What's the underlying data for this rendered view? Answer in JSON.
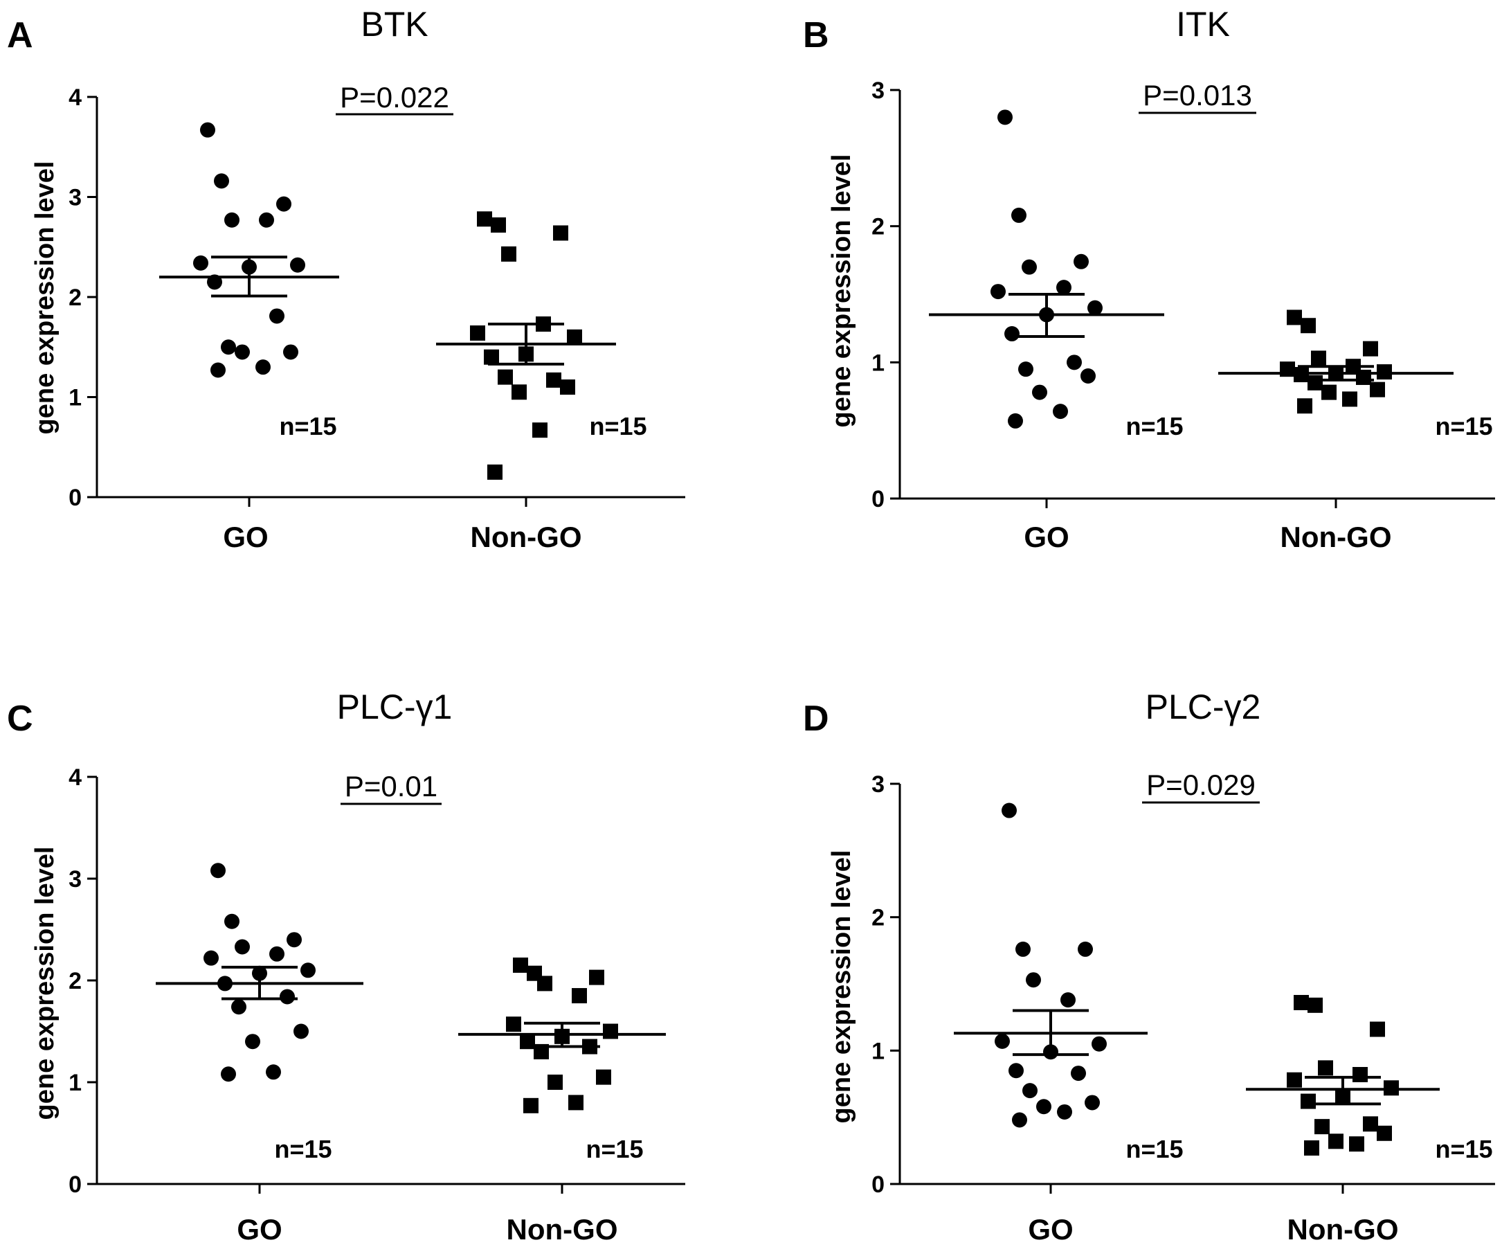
{
  "chart_data": [
    {
      "type": "scatter",
      "panel": "A",
      "title": "BTK",
      "ylabel": "gene expression level",
      "ylim": [
        0,
        4
      ],
      "yticks": [
        "0",
        "1",
        "2",
        "3",
        "4"
      ],
      "categories": [
        "GO",
        "Non-GO"
      ],
      "p_value": "P=0.022",
      "n_labels": [
        "n=15",
        "n=15"
      ],
      "groups": [
        {
          "name": "GO",
          "marker": "circle",
          "mean": 2.2,
          "sem": [
            2.01,
            2.4
          ],
          "values": [
            3.67,
            3.16,
            2.93,
            2.77,
            2.77,
            2.34,
            2.32,
            2.3,
            2.15,
            1.81,
            1.5,
            1.45,
            1.45,
            1.3,
            1.27
          ]
        },
        {
          "name": "Non-GO",
          "marker": "square",
          "mean": 1.53,
          "sem": [
            1.33,
            1.73
          ],
          "values": [
            2.78,
            2.72,
            2.64,
            2.43,
            1.73,
            1.64,
            1.6,
            1.43,
            1.4,
            1.17,
            1.2,
            1.1,
            1.05,
            0.67,
            0.25
          ]
        }
      ]
    },
    {
      "type": "scatter",
      "panel": "B",
      "title": "ITK",
      "ylabel": "gene expression level",
      "ylim": [
        0,
        3
      ],
      "yticks": [
        "0",
        "1",
        "2",
        "3"
      ],
      "categories": [
        "GO",
        "Non-GO"
      ],
      "p_value": "P=0.013",
      "n_labels": [
        "n=15",
        "n=15"
      ],
      "groups": [
        {
          "name": "GO",
          "marker": "circle",
          "mean": 1.35,
          "sem": [
            1.19,
            1.5
          ],
          "values": [
            2.8,
            2.08,
            1.74,
            1.7,
            1.55,
            1.52,
            1.4,
            1.35,
            1.21,
            1.0,
            0.95,
            0.9,
            0.78,
            0.64,
            0.57
          ]
        },
        {
          "name": "Non-GO",
          "marker": "square",
          "mean": 0.92,
          "sem": [
            0.87,
            0.97
          ],
          "values": [
            1.33,
            1.27,
            1.1,
            1.03,
            0.97,
            0.95,
            0.93,
            0.92,
            0.91,
            0.89,
            0.85,
            0.8,
            0.78,
            0.73,
            0.68
          ]
        }
      ]
    },
    {
      "type": "scatter",
      "panel": "C",
      "title": "PLC-γ1",
      "ylabel": "gene expression level",
      "ylim": [
        0,
        4
      ],
      "yticks": [
        "0",
        "1",
        "2",
        "3",
        "4"
      ],
      "categories": [
        "GO",
        "Non-GO"
      ],
      "p_value": "P=0.01",
      "n_labels": [
        "n=15",
        "n=15"
      ],
      "groups": [
        {
          "name": "GO",
          "marker": "circle",
          "mean": 1.97,
          "sem": [
            1.82,
            2.13
          ],
          "values": [
            3.08,
            2.58,
            2.4,
            2.33,
            2.26,
            2.22,
            2.1,
            2.07,
            1.97,
            1.84,
            1.74,
            1.5,
            1.4,
            1.1,
            1.08
          ]
        },
        {
          "name": "Non-GO",
          "marker": "square",
          "mean": 1.47,
          "sem": [
            1.35,
            1.58
          ],
          "values": [
            2.15,
            2.07,
            2.03,
            1.97,
            1.85,
            1.57,
            1.5,
            1.45,
            1.4,
            1.35,
            1.3,
            1.05,
            1.0,
            0.8,
            0.77
          ]
        }
      ]
    },
    {
      "type": "scatter",
      "panel": "D",
      "title": "PLC-γ2",
      "ylabel": "gene expression level",
      "ylim": [
        0,
        3
      ],
      "yticks": [
        "0",
        "1",
        "2",
        "3"
      ],
      "categories": [
        "GO",
        "Non-GO"
      ],
      "p_value": "P=0.029",
      "n_labels": [
        "n=15",
        "n=15"
      ],
      "groups": [
        {
          "name": "GO",
          "marker": "circle",
          "mean": 1.13,
          "sem": [
            0.97,
            1.3
          ],
          "values": [
            2.8,
            1.76,
            1.76,
            1.53,
            1.38,
            1.07,
            1.05,
            0.99,
            0.85,
            0.83,
            0.7,
            0.61,
            0.58,
            0.54,
            0.48
          ]
        },
        {
          "name": "Non-GO",
          "marker": "square",
          "mean": 0.71,
          "sem": [
            0.6,
            0.8
          ],
          "values": [
            1.36,
            1.34,
            1.16,
            0.87,
            0.82,
            0.78,
            0.72,
            0.65,
            0.62,
            0.45,
            0.43,
            0.38,
            0.32,
            0.3,
            0.27
          ]
        }
      ]
    }
  ]
}
